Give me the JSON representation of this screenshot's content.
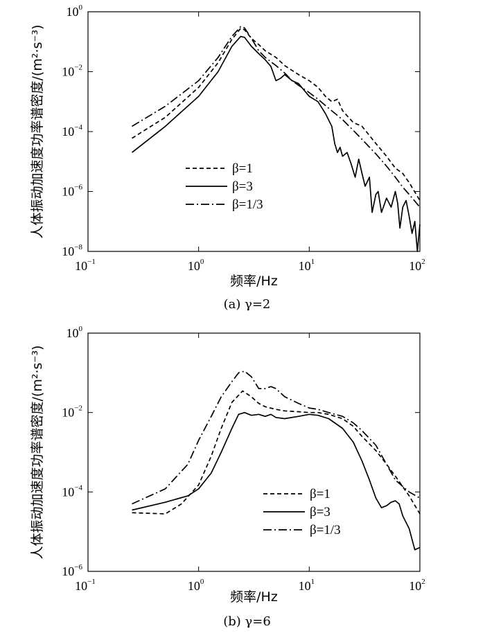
{
  "chart_data": [
    {
      "type": "line",
      "caption": "(a) γ=2",
      "xlabel": "频率/Hz",
      "ylabel": "人体振动加速度功率谱密度/(m²·s⁻³)",
      "xscale": "log",
      "yscale": "log",
      "xlim": [
        0.1,
        100
      ],
      "ylim": [
        1e-08,
        1
      ],
      "x_ticks": [
        {
          "base": "10",
          "exp": "-1"
        },
        {
          "base": "10",
          "exp": "0"
        },
        {
          "base": "10",
          "exp": "1"
        },
        {
          "base": "10",
          "exp": "2"
        }
      ],
      "y_ticks": [
        {
          "base": "10",
          "exp": "0"
        },
        {
          "base": "10",
          "exp": "-2"
        },
        {
          "base": "10",
          "exp": "-4"
        },
        {
          "base": "10",
          "exp": "-6"
        },
        {
          "base": "10",
          "exp": "-8"
        }
      ],
      "legend_position": "bottom-left",
      "series": [
        {
          "name": "β=1",
          "style": "dashed",
          "x": [
            0.25,
            0.5,
            1,
            1.5,
            2,
            2.4,
            2.6,
            3,
            3.5,
            4,
            5,
            6,
            8,
            10,
            12,
            14,
            16,
            18,
            20,
            25,
            30,
            40,
            50,
            60,
            70,
            80,
            100
          ],
          "y": [
            6e-05,
            0.0003,
            0.003,
            0.02,
            0.12,
            0.28,
            0.25,
            0.13,
            0.08,
            0.05,
            0.03,
            0.016,
            0.008,
            0.005,
            0.003,
            0.0015,
            0.001,
            0.0012,
            0.0005,
            0.0002,
            0.00015,
            4e-05,
            1.5e-05,
            6e-06,
            4e-06,
            2e-06,
            5e-07
          ]
        },
        {
          "name": "β=3",
          "style": "solid",
          "x": [
            0.25,
            0.5,
            1,
            1.5,
            2,
            2.4,
            2.6,
            3,
            3.5,
            4,
            4.5,
            5,
            5.5,
            6,
            7,
            8,
            10,
            12,
            14,
            16,
            17,
            18,
            19,
            20,
            22,
            24,
            26,
            28,
            30,
            32,
            35,
            37,
            40,
            42,
            45,
            50,
            55,
            60,
            63,
            66,
            70,
            75,
            80,
            85,
            90,
            95,
            100
          ],
          "y": [
            2e-05,
            0.00015,
            0.0015,
            0.01,
            0.07,
            0.15,
            0.14,
            0.07,
            0.04,
            0.025,
            0.015,
            0.005,
            0.006,
            0.008,
            0.005,
            0.004,
            0.0015,
            0.001,
            0.0004,
            0.00015,
            4e-05,
            2e-05,
            3e-05,
            1.5e-05,
            2e-05,
            8e-06,
            3e-06,
            1.2e-05,
            4e-06,
            1.5e-06,
            3e-06,
            2e-07,
            8e-07,
            1e-06,
            2e-07,
            6e-07,
            3e-07,
            1e-06,
            4e-07,
            6e-08,
            3e-07,
            5e-07,
            1.5e-07,
            4e-08,
            1e-07,
            1e-08,
            8e-08
          ]
        },
        {
          "name": "β=1/3",
          "style": "dashdot",
          "x": [
            0.25,
            0.5,
            1,
            1.5,
            2,
            2.4,
            2.6,
            3,
            3.5,
            4,
            5,
            6,
            7,
            8,
            10,
            12,
            15,
            20,
            25,
            30,
            40,
            50,
            60,
            70,
            80,
            100
          ],
          "y": [
            0.00015,
            0.0007,
            0.005,
            0.03,
            0.15,
            0.32,
            0.29,
            0.13,
            0.05,
            0.03,
            0.016,
            0.009,
            0.005,
            0.0035,
            0.002,
            0.0012,
            0.0006,
            0.00025,
            0.00011,
            5.5e-05,
            1.8e-05,
            7e-06,
            3e-06,
            1.4e-06,
            8e-07,
            3e-07
          ]
        }
      ]
    },
    {
      "type": "line",
      "caption": "(b) γ=6",
      "xlabel": "频率/Hz",
      "ylabel": "人体振动加速度功率谱密度/(m²·s⁻³)",
      "xscale": "log",
      "yscale": "log",
      "xlim": [
        0.1,
        100
      ],
      "ylim": [
        1e-06,
        1
      ],
      "x_ticks": [
        {
          "base": "10",
          "exp": "-1"
        },
        {
          "base": "10",
          "exp": "0"
        },
        {
          "base": "10",
          "exp": "1"
        },
        {
          "base": "10",
          "exp": "2"
        }
      ],
      "y_ticks": [
        {
          "base": "10",
          "exp": "0"
        },
        {
          "base": "10",
          "exp": "-2"
        },
        {
          "base": "10",
          "exp": "-4"
        },
        {
          "base": "10",
          "exp": "-6"
        }
      ],
      "legend_position": "bottom-right",
      "series": [
        {
          "name": "β=1",
          "style": "dashed",
          "x": [
            0.25,
            0.5,
            0.7,
            1,
            1.3,
            1.6,
            2,
            2.5,
            3,
            3.5,
            4,
            5,
            6,
            8,
            10,
            12,
            15,
            20,
            25,
            30,
            40,
            50,
            60,
            80,
            100
          ],
          "y": [
            3e-05,
            2.8e-05,
            5e-05,
            0.00015,
            0.0008,
            0.004,
            0.018,
            0.035,
            0.025,
            0.017,
            0.014,
            0.012,
            0.011,
            0.0105,
            0.01,
            0.01,
            0.009,
            0.007,
            0.0045,
            0.0025,
            0.0011,
            0.0005,
            0.00025,
            8e-05,
            2.8e-05
          ]
        },
        {
          "name": "β=3",
          "style": "solid",
          "x": [
            0.25,
            0.5,
            0.8,
            1,
            1.3,
            1.6,
            2,
            2.3,
            2.6,
            3,
            3.5,
            4,
            4.5,
            5,
            6,
            8,
            10,
            12,
            15,
            20,
            25,
            30,
            35,
            40,
            45,
            50,
            55,
            60,
            65,
            70,
            80,
            90,
            100
          ],
          "y": [
            3.5e-05,
            5.5e-05,
            8e-05,
            0.00012,
            0.0003,
            0.001,
            0.004,
            0.009,
            0.01,
            0.0085,
            0.009,
            0.008,
            0.009,
            0.0075,
            0.007,
            0.008,
            0.009,
            0.0085,
            0.007,
            0.004,
            0.0018,
            0.0006,
            0.0002,
            7e-05,
            4e-05,
            4.5e-05,
            5.5e-05,
            6e-05,
            5e-05,
            2.5e-05,
            1.2e-05,
            3.5e-06,
            4e-06
          ]
        },
        {
          "name": "β=1/3",
          "style": "dashdot",
          "x": [
            0.25,
            0.5,
            0.8,
            1,
            1.3,
            1.6,
            2,
            2.3,
            2.6,
            3,
            3.5,
            4,
            4.5,
            5,
            6,
            8,
            10,
            12,
            15,
            20,
            25,
            30,
            40,
            50,
            60,
            80,
            100
          ],
          "y": [
            5e-05,
            0.00012,
            0.0005,
            0.002,
            0.008,
            0.025,
            0.06,
            0.1,
            0.11,
            0.08,
            0.04,
            0.04,
            0.045,
            0.04,
            0.025,
            0.017,
            0.013,
            0.012,
            0.01,
            0.008,
            0.0055,
            0.0035,
            0.0015,
            0.0005,
            0.0002,
            0.0001,
            7e-05
          ]
        }
      ]
    }
  ]
}
